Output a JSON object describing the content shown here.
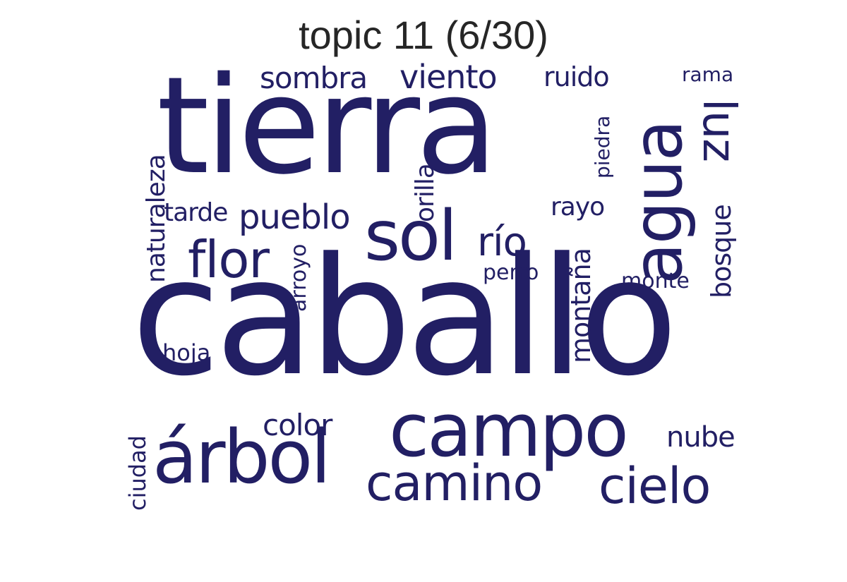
{
  "title": "topic 11 (6/30)",
  "color": "#221f64",
  "words": [
    {
      "text": "tierra"
    },
    {
      "text": "caballo"
    },
    {
      "text": "agua"
    },
    {
      "text": "campo"
    },
    {
      "text": "árbol"
    },
    {
      "text": "sol"
    },
    {
      "text": "camino"
    },
    {
      "text": "cielo"
    },
    {
      "text": "flor"
    },
    {
      "text": "luz"
    },
    {
      "text": "río"
    },
    {
      "text": "pueblo"
    },
    {
      "text": "viento"
    },
    {
      "text": "sombra"
    },
    {
      "text": "ruido"
    },
    {
      "text": "color"
    },
    {
      "text": "nube"
    },
    {
      "text": "montaña"
    },
    {
      "text": "bosque"
    },
    {
      "text": "naturaleza"
    },
    {
      "text": "tarde"
    },
    {
      "text": "rayo"
    },
    {
      "text": "orilla"
    },
    {
      "text": "rama"
    },
    {
      "text": "piedra"
    },
    {
      "text": "perro"
    },
    {
      "text": "monte"
    },
    {
      "text": "arroyo"
    },
    {
      "text": "hoja"
    },
    {
      "text": "ciudad"
    }
  ]
}
